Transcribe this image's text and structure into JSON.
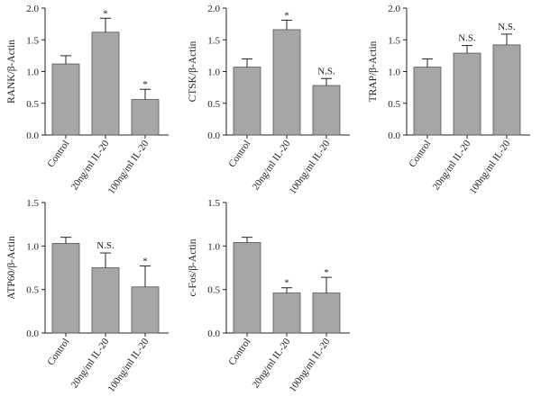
{
  "figure": {
    "bar_color": "#a6a6a6",
    "edge_color": "#555555",
    "axis_color": "#222222"
  },
  "chart_data": [
    {
      "type": "bar",
      "categories": [
        "Control",
        "20ng/ml IL-20",
        "100ng/ml IL-20"
      ],
      "values": [
        1.12,
        1.62,
        0.56
      ],
      "errors": [
        0.13,
        0.22,
        0.16
      ],
      "annotations": [
        "",
        "*",
        "*"
      ],
      "ylabel": "RANK/β-Actin",
      "ylim": [
        0,
        2.0
      ],
      "yticks": [
        "0.0",
        "0.5",
        "1.0",
        "1.5",
        "2.0"
      ]
    },
    {
      "type": "bar",
      "categories": [
        "Control",
        "20ng/ml IL-20",
        "100ng/ml IL-20"
      ],
      "values": [
        1.07,
        1.66,
        0.78
      ],
      "errors": [
        0.13,
        0.15,
        0.11
      ],
      "annotations": [
        "",
        "*",
        "N.S."
      ],
      "ylabel": "CTSK/β-Actin",
      "ylim": [
        0,
        2.0
      ],
      "yticks": [
        "0.0",
        "0.5",
        "1.0",
        "1.5",
        "2.0"
      ]
    },
    {
      "type": "bar",
      "categories": [
        "Control",
        "20ng/ml IL-20",
        "100ng/ml IL-20"
      ],
      "values": [
        1.07,
        1.29,
        1.42
      ],
      "errors": [
        0.13,
        0.12,
        0.17
      ],
      "annotations": [
        "",
        "N.S.",
        "N.S."
      ],
      "ylabel": "TRAP/β-Actin",
      "ylim": [
        0,
        2.0
      ],
      "yticks": [
        "0.0",
        "0.5",
        "1.0",
        "1.5",
        "2.0"
      ]
    },
    {
      "type": "bar",
      "categories": [
        "Control",
        "20ng/ml IL-20",
        "100ng/ml IL-20"
      ],
      "values": [
        1.03,
        0.75,
        0.53
      ],
      "errors": [
        0.07,
        0.17,
        0.24
      ],
      "annotations": [
        "",
        "N.S.",
        "*"
      ],
      "ylabel": "ATP60/β-Actin",
      "ylim": [
        0,
        1.5
      ],
      "yticks": [
        "0.0",
        "0.5",
        "1.0",
        "1.5"
      ]
    },
    {
      "type": "bar",
      "categories": [
        "Control",
        "20ng/ml IL-20",
        "100ng/ml IL-20"
      ],
      "values": [
        1.04,
        0.46,
        0.46
      ],
      "errors": [
        0.06,
        0.06,
        0.18
      ],
      "annotations": [
        "",
        "*",
        "*"
      ],
      "ylabel": "c-Fos/β-Actin",
      "ylim": [
        0,
        1.5
      ],
      "yticks": [
        "0.0",
        "0.5",
        "1.0",
        "1.5"
      ]
    }
  ]
}
